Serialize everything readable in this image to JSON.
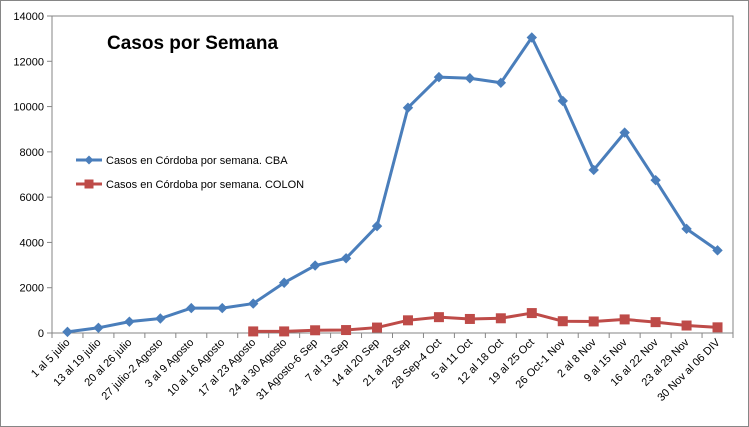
{
  "chart_data": {
    "type": "line",
    "title": "Casos por Semana",
    "xlabel": "",
    "ylabel": "",
    "ylim": [
      0,
      14000
    ],
    "yticks": [
      0,
      2000,
      4000,
      6000,
      8000,
      10000,
      12000,
      14000
    ],
    "grid": false,
    "legend_position": "left",
    "categories": [
      "1 al 5 julio",
      "13 al 19 julio",
      "20 al 26 julio",
      "27 julio-2 Agosto",
      "3 al 9 Agosto",
      "10 al 16 Agosto",
      "17 al 23 Agosto",
      "24 al 30 Agosto",
      "31 Agosto-6 Sep",
      "7 al 13 Sep",
      "14 al 20 Sep",
      "21 al 28 Sep",
      "28 Sep-4 Oct",
      "5 al 11 Oct",
      "12 al 18 Oct",
      "19 al 25 Oct",
      "26 Oct-1 Nov",
      "2 al 8 Nov",
      "9 al 15 Nov",
      "16 al 22 Nov",
      "23 al 29 Nov",
      "30 Nov al 06 DIV"
    ],
    "series": [
      {
        "name": "Casos en Córdoba por semana. CBA",
        "color": "#4A7EBB",
        "marker": "diamond",
        "values": [
          50,
          230,
          500,
          640,
          1100,
          1100,
          1300,
          2220,
          2980,
          3300,
          4720,
          9950,
          11300,
          11250,
          11050,
          13050,
          10250,
          7200,
          8850,
          6750,
          4600,
          3650
        ]
      },
      {
        "name": "Casos en Córdoba por semana. COLON",
        "color": "#BE4B48",
        "marker": "square",
        "values": [
          null,
          null,
          null,
          null,
          null,
          null,
          70,
          70,
          120,
          130,
          240,
          560,
          700,
          620,
          650,
          880,
          520,
          510,
          600,
          480,
          330,
          250
        ]
      }
    ]
  }
}
